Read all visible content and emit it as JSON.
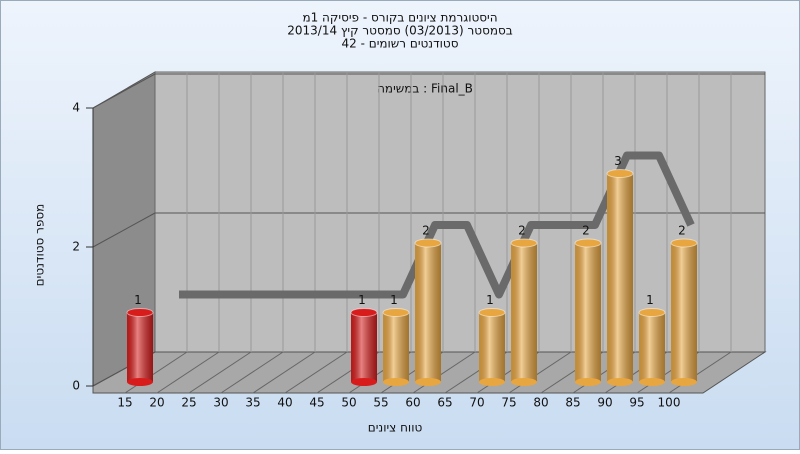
{
  "chart_data": {
    "type": "bar3d",
    "title": "היסטוגרמת ציונים בקורס - פיסיקה 1מ",
    "subtitle": "בסמסטר  (03/2013)  סמסטר קיץ 2013/14",
    "subtitle2": "סטודנטים רשומים - 42",
    "annotation": "במשימה : Final_B",
    "xlabel": "טווח ציונים",
    "ylabel": "מספר סטודנטים",
    "categories": [
      "15",
      "20",
      "25",
      "30",
      "35",
      "40",
      "45",
      "50",
      "55",
      "60",
      "65",
      "70",
      "75",
      "80",
      "85",
      "90",
      "95",
      "100"
    ],
    "series": [
      {
        "values": [
          1,
          0,
          0,
          0,
          0,
          0,
          0,
          1,
          1,
          2,
          0,
          1,
          2,
          0,
          2,
          3,
          1,
          2
        ],
        "colors": [
          "#d81c1c",
          "#e8a640",
          "#e8a640",
          "#e8a640",
          "#e8a640",
          "#e8a640",
          "#e8a640",
          "#d81c1c",
          "#e8a640",
          "#e8a640",
          "#e8a640",
          "#e8a640",
          "#e8a640",
          "#e8a640",
          "#e8a640",
          "#e8a640",
          "#e8a640",
          "#e8a640"
        ]
      },
      {
        "color": "#6a6a6a",
        "values": [
          null,
          1,
          1,
          1,
          1,
          1,
          1,
          1,
          1,
          2,
          2,
          1,
          2,
          2,
          2,
          3,
          3,
          2
        ]
      }
    ],
    "ylim": [
      0,
      4
    ],
    "yticks": [
      0,
      2,
      4
    ],
    "grid": true
  }
}
